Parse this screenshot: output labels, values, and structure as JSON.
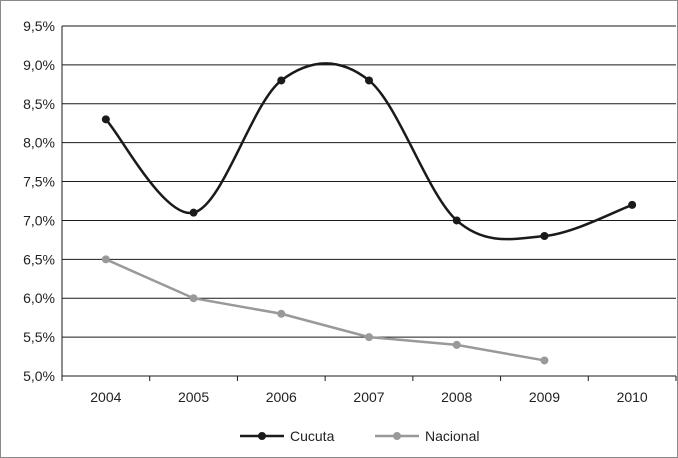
{
  "chart_data": {
    "type": "line",
    "categories": [
      "2004",
      "2005",
      "2006",
      "2007",
      "2008",
      "2009",
      "2010"
    ],
    "ylim": [
      5.0,
      9.5
    ],
    "yticks": [
      "5,0%",
      "5,5%",
      "6,0%",
      "6,5%",
      "7,0%",
      "7,5%",
      "8,0%",
      "8,5%",
      "9,0%",
      "9,5%"
    ],
    "ytick_values": [
      5.0,
      5.5,
      6.0,
      6.5,
      7.0,
      7.5,
      8.0,
      8.5,
      9.0,
      9.5
    ],
    "grid": true,
    "legend_position": "bottom",
    "series": [
      {
        "name": "Cucuta",
        "color": "#1a1a1a",
        "smooth": true,
        "values": [
          8.3,
          7.1,
          8.8,
          8.8,
          7.0,
          6.8,
          7.2
        ]
      },
      {
        "name": "Nacional",
        "color": "#999999",
        "smooth": false,
        "values": [
          6.5,
          6.0,
          5.8,
          5.5,
          5.4,
          5.2,
          null
        ]
      }
    ]
  }
}
